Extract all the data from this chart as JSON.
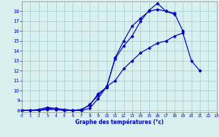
{
  "xlabel": "Graphe des températures (°c)",
  "xlim": [
    0,
    23
  ],
  "ylim": [
    7.8,
    19.0
  ],
  "yticks": [
    8,
    9,
    10,
    11,
    12,
    13,
    14,
    15,
    16,
    17,
    18
  ],
  "xticks": [
    0,
    1,
    2,
    3,
    4,
    5,
    6,
    7,
    8,
    9,
    10,
    11,
    12,
    13,
    14,
    15,
    16,
    17,
    18,
    19,
    20,
    21,
    22,
    23
  ],
  "line_color": "#0000cc",
  "bg_color": "#d8f0f0",
  "grid_color": "#a0c8c8",
  "line1_x": [
    0,
    1,
    2,
    3,
    4,
    5,
    6,
    7,
    8,
    9,
    10,
    11,
    12,
    13,
    14,
    15,
    16,
    17,
    18,
    19
  ],
  "line1_y": [
    8.0,
    8.0,
    8.1,
    8.3,
    8.2,
    8.1,
    8.0,
    8.1,
    8.5,
    9.7,
    10.3,
    13.3,
    15.0,
    16.5,
    17.3,
    18.0,
    18.2,
    18.0,
    17.8,
    16.0
  ],
  "line2_x": [
    0,
    1,
    2,
    3,
    4,
    5,
    6,
    7,
    8,
    9,
    10,
    11,
    12,
    13,
    14,
    15,
    16,
    17,
    18
  ],
  "line2_y": [
    8.0,
    8.0,
    8.0,
    8.2,
    8.1,
    8.0,
    8.0,
    8.0,
    8.2,
    9.2,
    10.4,
    13.2,
    14.5,
    15.5,
    17.0,
    18.1,
    18.8,
    18.0,
    17.7
  ],
  "line3_x": [
    0,
    1,
    2,
    3,
    4,
    5,
    6,
    7,
    8,
    9,
    10,
    11,
    12,
    13,
    14,
    15,
    16,
    17,
    18,
    19,
    20,
    21
  ],
  "line3_y": [
    8.0,
    8.0,
    8.0,
    8.1,
    8.1,
    8.0,
    8.0,
    8.0,
    8.6,
    9.5,
    10.4,
    11.0,
    12.2,
    13.0,
    13.8,
    14.3,
    14.8,
    15.0,
    15.5,
    15.8,
    13.0,
    12.0
  ]
}
